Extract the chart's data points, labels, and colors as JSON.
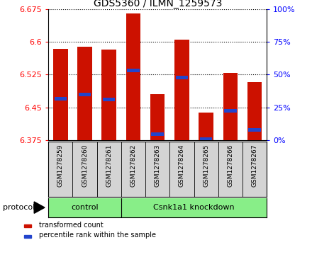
{
  "title": "GDS5360 / ILMN_1259573",
  "samples": [
    "GSM1278259",
    "GSM1278260",
    "GSM1278261",
    "GSM1278262",
    "GSM1278263",
    "GSM1278264",
    "GSM1278265",
    "GSM1278266",
    "GSM1278267"
  ],
  "bar_tops": [
    6.583,
    6.588,
    6.582,
    6.665,
    6.48,
    6.605,
    6.438,
    6.528,
    6.507
  ],
  "bar_bottom": 6.375,
  "blue_values": [
    6.47,
    6.48,
    6.468,
    6.535,
    6.388,
    6.518,
    6.378,
    6.442,
    6.398
  ],
  "ylim": [
    6.375,
    6.675
  ],
  "yticks": [
    6.375,
    6.45,
    6.525,
    6.6,
    6.675
  ],
  "right_yticks": [
    0,
    25,
    50,
    75,
    100
  ],
  "bar_color": "#cc1100",
  "blue_color": "#2244cc",
  "tick_area_color": "#d4d4d4",
  "protocol_color": "#88ee88",
  "control_samples": 3,
  "knockdown_samples": 6,
  "control_label": "control",
  "knockdown_label": "Csnk1a1 knockdown",
  "protocol_label": "protocol",
  "legend_red_label": "transformed count",
  "legend_blue_label": "percentile rank within the sample",
  "title_fontsize": 10,
  "tick_fontsize": 8,
  "label_fontsize": 7,
  "proto_fontsize": 8
}
